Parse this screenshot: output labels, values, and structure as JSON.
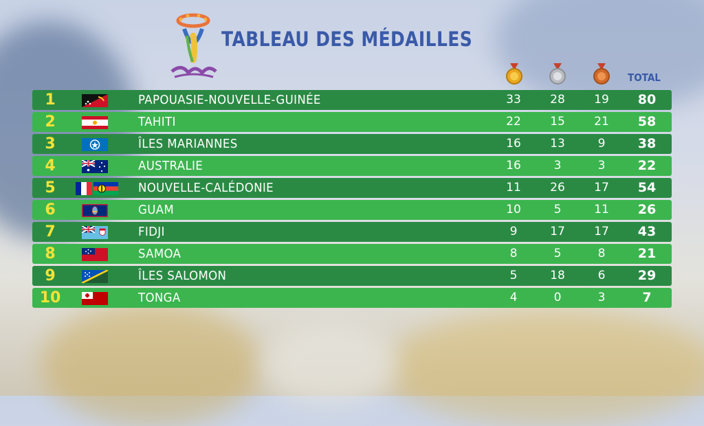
{
  "title": "TABLEAU DES MÉDAILLES",
  "headers": {
    "gold_icon": "gold-medal-icon",
    "silver_icon": "silver-medal-icon",
    "bronze_icon": "bronze-medal-icon",
    "total": "TOTAL"
  },
  "colors": {
    "row_dark": "#2a8a44",
    "row_light": "#3cb54f",
    "rank": "#f2e33a",
    "title": "#3a5aa8"
  },
  "rows": [
    {
      "rank": "1",
      "country": "PAPOUASIE-NOUVELLE-GUINÉE",
      "flag": "png",
      "gold": "33",
      "silver": "28",
      "bronze": "19",
      "total": "80"
    },
    {
      "rank": "2",
      "country": "TAHITI",
      "flag": "tahiti",
      "gold": "22",
      "silver": "15",
      "bronze": "21",
      "total": "58"
    },
    {
      "rank": "3",
      "country": "ÎLES MARIANNES",
      "flag": "nmi",
      "gold": "16",
      "silver": "13",
      "bronze": "9",
      "total": "38"
    },
    {
      "rank": "4",
      "country": "AUSTRALIE",
      "flag": "australia",
      "gold": "16",
      "silver": "3",
      "bronze": "3",
      "total": "22"
    },
    {
      "rank": "5",
      "country": "NOUVELLE-CALÉDONIE",
      "flag": "new-caledonia",
      "gold": "11",
      "silver": "26",
      "bronze": "17",
      "total": "54"
    },
    {
      "rank": "6",
      "country": "GUAM",
      "flag": "guam",
      "gold": "10",
      "silver": "5",
      "bronze": "11",
      "total": "26"
    },
    {
      "rank": "7",
      "country": "FIDJI",
      "flag": "fiji",
      "gold": "9",
      "silver": "17",
      "bronze": "17",
      "total": "43"
    },
    {
      "rank": "8",
      "country": "SAMOA",
      "flag": "samoa",
      "gold": "8",
      "silver": "5",
      "bronze": "8",
      "total": "21"
    },
    {
      "rank": "9",
      "country": "ÎLES SALOMON",
      "flag": "solomon",
      "gold": "5",
      "silver": "18",
      "bronze": "6",
      "total": "29"
    },
    {
      "rank": "10",
      "country": "TONGA",
      "flag": "tonga",
      "gold": "4",
      "silver": "0",
      "bronze": "3",
      "total": "7"
    }
  ]
}
